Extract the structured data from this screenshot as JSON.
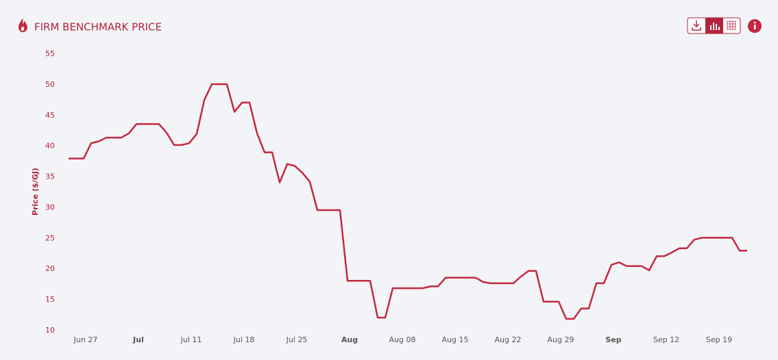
{
  "chart_data": {
    "type": "line",
    "title": "FIRM BENCHMARK PRICE",
    "y_label": "Price ($/GJ)",
    "x": [
      "Jun 25",
      "Jun 27",
      "Jun 28",
      "Jun 29",
      "Jun 30",
      "Jul 2",
      "Jul 3",
      "Jul 4",
      "Jul 7",
      "Jul 8",
      "Jul 9",
      "Jul 10",
      "Jul 11",
      "Jul 12",
      "Jul 13",
      "Jul 14",
      "Jul 16",
      "Jul 17",
      "Jul 18",
      "Jul 19",
      "Jul 20",
      "Jul 21",
      "Jul 22",
      "Jul 23",
      "Jul 24",
      "Jul 25",
      "Jul 26",
      "Jul 27",
      "Jul 28",
      "Jul 31",
      "Aug 1",
      "Aug 4",
      "Aug 5",
      "Aug 6",
      "Aug 7",
      "Aug 11",
      "Aug 12",
      "Aug 13",
      "Aug 14",
      "Aug 18",
      "Aug 19",
      "Aug 20",
      "Aug 23",
      "Aug 24",
      "Aug 25",
      "Aug 26",
      "Aug 27",
      "Aug 29",
      "Aug 30",
      "Aug 31",
      "Sep 1",
      "Sep 2",
      "Sep 3",
      "Sep 4",
      "Sep 5",
      "Sep 6",
      "Sep 7",
      "Sep 9",
      "Sep 10",
      "Sep 11",
      "Sep 12",
      "Sep 13",
      "Sep 14",
      "Sep 15",
      "Sep 16",
      "Sep 17",
      "Sep 21",
      "Sep 22",
      "Sep 23"
    ],
    "series": [
      {
        "name": "Firm Benchmark Price",
        "color": "#c4283f",
        "values": [
          38,
          38,
          40.5,
          40.8,
          41.4,
          41.4,
          42.1,
          43.6,
          43.6,
          42.2,
          40.2,
          40.2,
          40.5,
          42,
          47.5,
          50.1,
          50.1,
          45.6,
          47.1,
          47.1,
          42.1,
          39,
          39,
          34.1,
          37.1,
          36.8,
          35.7,
          34.2,
          29.6,
          29.6,
          18.1,
          18.1,
          12.1,
          12.1,
          16.9,
          16.9,
          17.2,
          17.2,
          18.6,
          18.6,
          17.9,
          17.7,
          17.7,
          18.8,
          19.7,
          19.7,
          14.7,
          14.7,
          11.9,
          11.9,
          13.6,
          13.6,
          17.7,
          17.7,
          20.7,
          21.1,
          20.5,
          20.5,
          19.8,
          22.1,
          22.1,
          22.7,
          23.4,
          23.4,
          24.8,
          25.1,
          25.1,
          23,
          23
        ]
      }
    ],
    "xlim": [
      "Jun 24",
      "Sep 24"
    ],
    "xticks": [
      "Jun 27",
      {
        "value": "Jul 4",
        "label": "Jul"
      },
      "Jul 11",
      "Jul 18",
      "Jul 25",
      {
        "value": "Aug 1",
        "label": "Aug"
      },
      "Aug 08",
      "Aug 15",
      "Aug 22",
      "Aug 29",
      {
        "value": "Sep 5",
        "label": "Sep"
      },
      "Sep 12",
      "Sep 19"
    ],
    "ylim": [
      10,
      55
    ],
    "yticks": [
      10,
      15,
      20,
      25,
      30,
      35,
      40,
      45,
      50,
      55
    ],
    "grid": false
  }
}
